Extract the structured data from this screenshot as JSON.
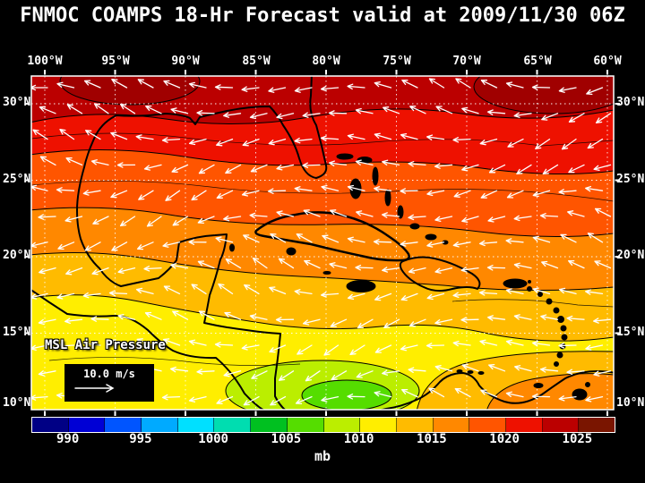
{
  "title": "FNMOC COAMPS 18-Hr Forecast valid at 2009/11/30 06Z",
  "map": {
    "field_label": "MSL Air Pressure",
    "wind_scale": {
      "label": "10.0 m/s"
    },
    "axes": {
      "lon_labels": [
        "100°W",
        "95°W",
        "90°W",
        "85°W",
        "80°W",
        "75°W",
        "70°W",
        "65°W",
        "60°W"
      ],
      "lat_labels": [
        "30°N",
        "25°N",
        "20°N",
        "15°N",
        "10°N"
      ]
    }
  },
  "colorbar": {
    "unit": "mb",
    "tick_labels": [
      "990",
      "995",
      "1000",
      "1005",
      "1010",
      "1015",
      "1020",
      "1025"
    ],
    "range_mb": [
      987.5,
      1027.5
    ],
    "colors": [
      "#000085",
      "#0000d5",
      "#0055ff",
      "#00aaff",
      "#00e0ff",
      "#00ddb0",
      "#00c020",
      "#55dd00",
      "#bbee00",
      "#ffee00",
      "#ffbb00",
      "#ff8800",
      "#ff5500",
      "#ee1100",
      "#bb0000",
      "#7a1500"
    ]
  },
  "chart_data": {
    "type": "heatmap",
    "title": "FNMOC COAMPS 18-Hr Forecast valid at 2009/11/30 06Z",
    "field": "MSL Air Pressure",
    "unit": "mb",
    "lon_range_degW": [
      100,
      60
    ],
    "lat_range_degN": [
      10,
      30
    ],
    "colorbar_ticks_mb": [
      990,
      995,
      1000,
      1005,
      1010,
      1015,
      1020,
      1025
    ],
    "wind_vector_scale_ms": 10.0,
    "pattern": "high pressure (1017.5-1022.5 mb, dark red) across the north near 30N, decreasing southward through orange (~1012.5 mb) to yellow (~1010 mb) near 15N, local low (green, ~1005 mb) near 82W 11N; easterly trade-wind vectors throughout"
  }
}
